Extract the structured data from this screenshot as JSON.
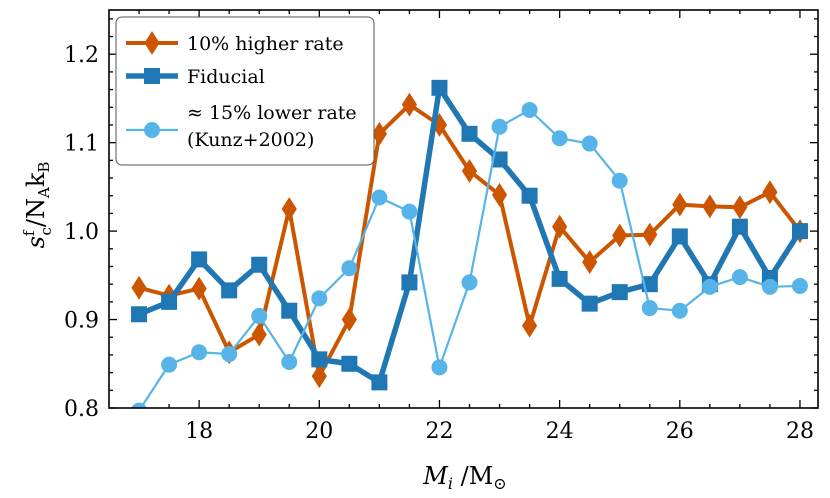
{
  "chart_data": {
    "type": "line",
    "title": "",
    "xlabel": "M_i /M_⊙",
    "ylabel": "s_c^f/N_A k_B",
    "xlim": [
      16.5,
      28.3
    ],
    "ylim": [
      0.8,
      1.25
    ],
    "xticks": [
      18,
      20,
      22,
      24,
      26,
      28
    ],
    "yticks": [
      0.8,
      0.9,
      1.0,
      1.1,
      1.2
    ],
    "xtick_labels": [
      "18",
      "20",
      "22",
      "24",
      "26",
      "28"
    ],
    "ytick_labels": [
      "0.8",
      "0.9",
      "1.0",
      "1.1",
      "1.2"
    ],
    "legend_position": "top-left",
    "series": [
      {
        "name": "10% higher rate",
        "color": "#cc5500",
        "marker": "diamond",
        "x": [
          17.0,
          17.5,
          18.0,
          18.5,
          19.0,
          19.5,
          20.0,
          20.5,
          21.0,
          21.5,
          22.0,
          22.5,
          23.0,
          23.5,
          24.0,
          24.5,
          25.0,
          25.5,
          26.0,
          26.5,
          27.0,
          27.5,
          28.0
        ],
        "values": [
          0.936,
          0.927,
          0.935,
          0.863,
          0.883,
          1.025,
          0.836,
          0.9,
          1.11,
          1.143,
          1.12,
          1.068,
          1.041,
          0.893,
          1.005,
          0.965,
          0.995,
          0.996,
          1.03,
          1.028,
          1.027,
          1.044,
          1.0
        ]
      },
      {
        "name": "Fiducial",
        "color": "#1f77b4",
        "marker": "square",
        "x": [
          17.0,
          17.5,
          18.0,
          18.5,
          19.0,
          19.5,
          20.0,
          20.5,
          21.0,
          21.5,
          22.0,
          22.5,
          23.0,
          23.5,
          24.0,
          24.5,
          25.0,
          25.5,
          26.0,
          26.5,
          27.0,
          27.5,
          28.0
        ],
        "values": [
          0.906,
          0.92,
          0.968,
          0.933,
          0.962,
          0.91,
          0.855,
          0.85,
          0.829,
          0.942,
          1.162,
          1.11,
          1.081,
          1.04,
          0.946,
          0.918,
          0.931,
          0.94,
          0.994,
          0.94,
          1.005,
          0.947,
          1.0
        ]
      },
      {
        "name": "≈ 15% lower rate",
        "name_line2": "(Kunz+2002)",
        "color": "#56b4e9",
        "marker": "circle",
        "x": [
          17.0,
          17.5,
          18.0,
          18.5,
          19.0,
          19.5,
          20.0,
          20.5,
          21.0,
          21.5,
          22.0,
          22.5,
          23.0,
          23.5,
          24.0,
          24.5,
          25.0,
          25.5,
          26.0,
          26.5,
          27.0,
          27.5,
          28.0
        ],
        "values": [
          0.797,
          0.849,
          0.863,
          0.861,
          0.904,
          0.852,
          0.924,
          0.958,
          1.038,
          1.022,
          0.846,
          0.942,
          1.118,
          1.137,
          1.105,
          1.099,
          1.057,
          0.913,
          0.91,
          0.937,
          0.948,
          0.937,
          0.938
        ]
      }
    ]
  }
}
